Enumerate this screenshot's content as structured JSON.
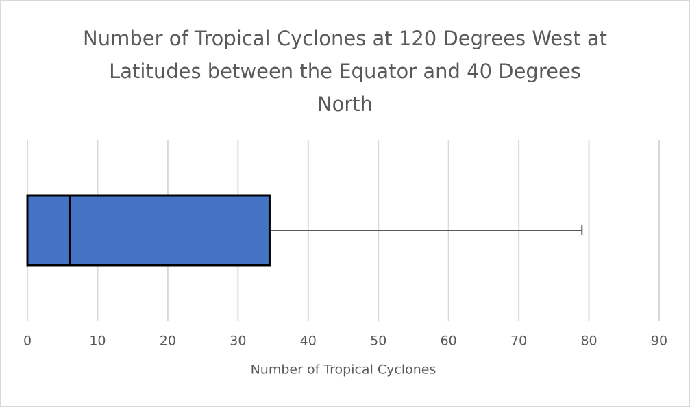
{
  "chart_data": {
    "type": "box",
    "title": "Number of Tropical Cyclones at 120 Degrees West at Latitudes between the Equator and 40 Degrees North",
    "xlabel": "Number of Tropical Cyclones",
    "box": {
      "min": 0,
      "q1": 0,
      "median": 6,
      "q3": 34.5,
      "max": 79
    },
    "color": "#4472c4",
    "xlim": [
      0,
      90
    ],
    "xticks": [
      0,
      10,
      20,
      30,
      40,
      50,
      60,
      70,
      80,
      90
    ],
    "grid": true
  }
}
